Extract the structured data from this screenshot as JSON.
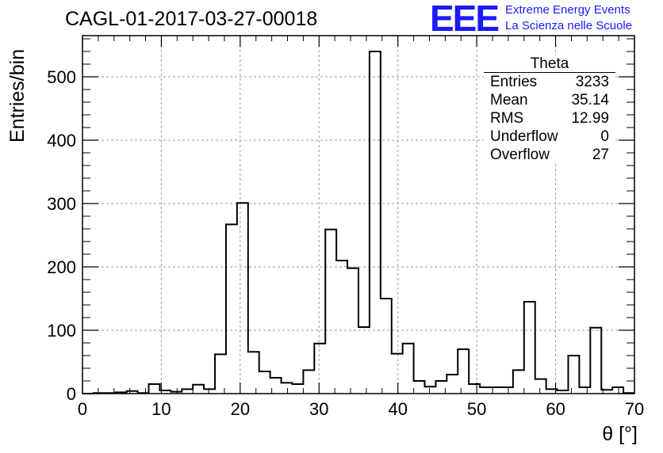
{
  "header": {
    "run_title": "CAGL-01-2017-03-27-00018",
    "logo_text": "EEE",
    "logo_line1": "Extreme Energy Events",
    "logo_line2": "La Scienza nelle Scuole"
  },
  "stats_box": {
    "title": "Theta",
    "rows": [
      {
        "label": "Entries",
        "value": "3233"
      },
      {
        "label": "Mean",
        "value": "35.14"
      },
      {
        "label": "RMS",
        "value": "12.99"
      },
      {
        "label": "Underflow",
        "value": "0"
      },
      {
        "label": "Overflow",
        "value": "27"
      }
    ]
  },
  "chart_data": {
    "type": "bar",
    "histogram": true,
    "xlabel": "θ [°]",
    "ylabel": "Entries/bin",
    "xlim": [
      0,
      70
    ],
    "ylim": [
      0,
      565
    ],
    "bin_width": 1.4,
    "x_ticks": [
      0,
      10,
      20,
      30,
      40,
      50,
      60,
      70
    ],
    "y_ticks": [
      0,
      100,
      200,
      300,
      400,
      500
    ],
    "grid": true,
    "bin_edges_start": 0,
    "values": [
      0,
      1,
      1,
      2,
      4,
      1,
      15,
      5,
      3,
      7,
      14,
      7,
      62,
      267,
      301,
      66,
      35,
      25,
      17,
      15,
      37,
      79,
      259,
      210,
      198,
      105,
      540,
      150,
      63,
      79,
      20,
      11,
      20,
      30,
      70,
      15,
      10,
      10,
      10,
      37,
      145,
      23,
      7,
      5,
      60,
      10,
      104,
      6,
      10,
      1
    ]
  }
}
